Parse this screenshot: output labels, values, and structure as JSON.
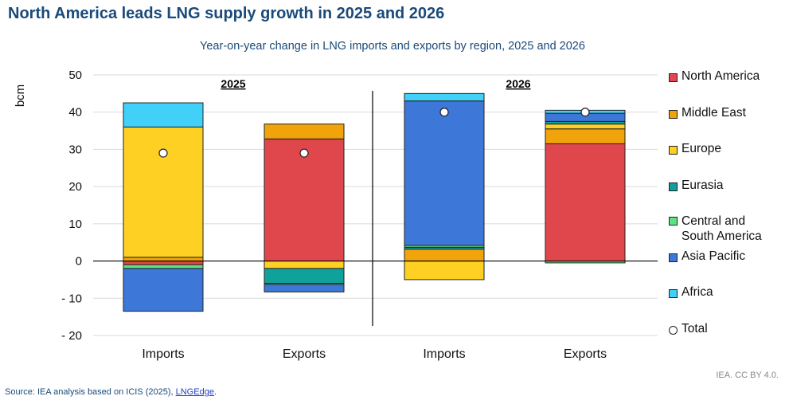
{
  "title": "North America leads LNG supply growth in 2025 and 2026",
  "chart_data": {
    "type": "bar",
    "subtitle": "Year-on-year change in LNG imports and exports by region, 2025 and 2026",
    "ylabel": "bcm",
    "ylim": [
      -20,
      50
    ],
    "yticks": [
      50,
      40,
      30,
      20,
      10,
      0,
      -10,
      -20
    ],
    "ytick_labels": [
      "50",
      "40",
      "30",
      "20",
      "10",
      "0",
      "- 10",
      "- 20"
    ],
    "year_labels": [
      "2025",
      "2026"
    ],
    "categories": [
      "Imports",
      "Exports",
      "Imports",
      "Exports"
    ],
    "series": [
      {
        "name": "North America",
        "color": "#e0474c",
        "values": [
          -1.0,
          32.8,
          0,
          31.5
        ]
      },
      {
        "name": "Middle East",
        "color": "#f0a30a",
        "values": [
          1.0,
          4.0,
          3.2,
          4.0
        ]
      },
      {
        "name": "Europe",
        "color": "#fdd023",
        "values": [
          35.0,
          -2.0,
          -5.0,
          1.3
        ]
      },
      {
        "name": "Eurasia",
        "color": "#10a19a",
        "values": [
          0,
          -4.0,
          0.5,
          0.7
        ]
      },
      {
        "name": "Central and South America",
        "color": "#5fe381",
        "values": [
          -1.0,
          -0.3,
          0.5,
          -0.5
        ]
      },
      {
        "name": "Asia Pacific",
        "color": "#3d78d8",
        "values": [
          -11.5,
          -2.0,
          38.8,
          2.2
        ]
      },
      {
        "name": "Africa",
        "color": "#40d0f8",
        "values": [
          6.5,
          0,
          2.0,
          0.8
        ]
      }
    ],
    "total": {
      "name": "Total",
      "values": [
        29,
        29,
        40,
        40
      ]
    }
  },
  "source": {
    "prefix": "Source: IEA analysis based on ICIS (2025), ",
    "link": "LNGEdge",
    "suffix": "."
  },
  "credit": "IEA. CC BY 4.0."
}
